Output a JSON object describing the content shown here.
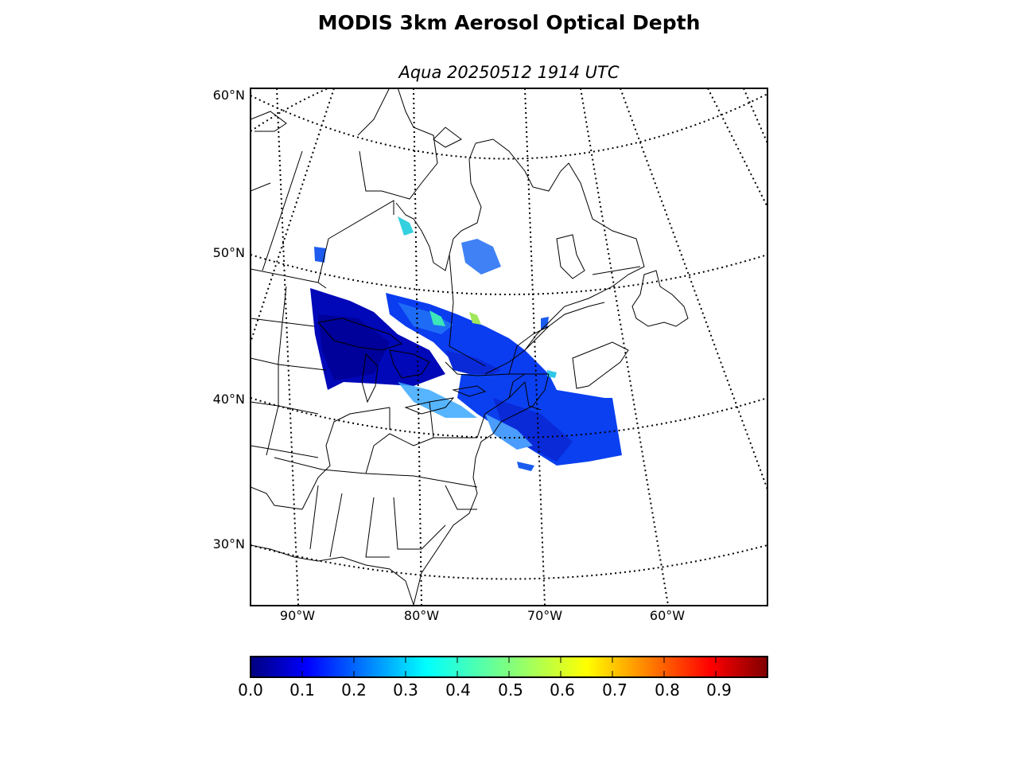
{
  "figure": {
    "title": "MODIS 3km Aerosol Optical Depth",
    "subtitle": "Aqua 20250512 1914 UTC"
  },
  "map": {
    "projection": "lambert-conformal",
    "extent": {
      "lon_min": -93.8,
      "lon_max": -52,
      "lat_min": 25,
      "lat_max": 61
    },
    "latitude_labels": [
      "60°N",
      "50°N",
      "40°N",
      "30°N"
    ],
    "longitude_labels": [
      "90°W",
      "80°W",
      "70°W",
      "60°W"
    ],
    "graticule": "dotted",
    "boundaries": [
      "coastlines",
      "countries",
      "states-provinces"
    ]
  },
  "colorbar": {
    "colormap": "jet",
    "vmin": 0.0,
    "vmax": 1.0,
    "ticks": [
      "0.0",
      "0.1",
      "0.2",
      "0.3",
      "0.4",
      "0.5",
      "0.6",
      "0.7",
      "0.8",
      "0.9"
    ]
  },
  "aerosol_field": {
    "description_values": "mostly low AOD 0.0–0.3 over Great Lakes, Quebec and New England / Atlantic swath; scattered patches up to ~0.5",
    "typical_range": [
      0.0,
      0.5
    ]
  },
  "colors": {
    "jet_0": "#00007f",
    "jet_0_125": "#0000ff",
    "jet_0_375": "#00ffff",
    "jet_0_625": "#ffff00",
    "jet_0_875": "#ff0000",
    "jet_1": "#7f0000"
  }
}
